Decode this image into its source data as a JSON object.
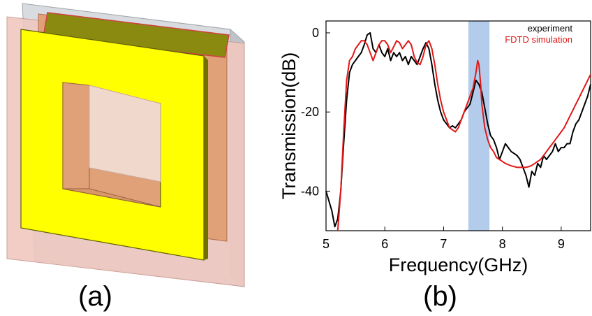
{
  "panels": {
    "a": {
      "label": "(a)"
    },
    "b": {
      "label": "(b)"
    }
  },
  "schematic": {
    "colors": {
      "gold_patch": "#ffff00",
      "copper_layer": "#e0a078",
      "substrate": "#f0c8c0",
      "glass": "#d8dce0",
      "top_strip": "#8a8a10",
      "top_strip_edge": "#d04040"
    }
  },
  "chart_data": {
    "type": "line",
    "xlabel": "Frequency(GHz)",
    "ylabel": "Transmission(dB)",
    "xlim": [
      5,
      9.5
    ],
    "ylim": [
      -50,
      3
    ],
    "xticks": [
      5,
      6,
      7,
      8,
      9
    ],
    "yticks": [
      0,
      -20,
      -40
    ],
    "grid": false,
    "legend_position": "top-right",
    "highlight_band": {
      "x0": 7.42,
      "x1": 7.78,
      "color": "#b4cceb"
    },
    "series": [
      {
        "name": "experiment",
        "color": "#000000",
        "x": [
          5.0,
          5.1,
          5.15,
          5.2,
          5.25,
          5.3,
          5.35,
          5.4,
          5.45,
          5.5,
          5.55,
          5.6,
          5.65,
          5.7,
          5.75,
          5.8,
          5.85,
          5.9,
          5.95,
          6.0,
          6.05,
          6.1,
          6.15,
          6.2,
          6.25,
          6.3,
          6.35,
          6.4,
          6.45,
          6.5,
          6.55,
          6.6,
          6.65,
          6.7,
          6.75,
          6.8,
          6.85,
          6.9,
          6.95,
          7.0,
          7.05,
          7.1,
          7.15,
          7.2,
          7.25,
          7.3,
          7.35,
          7.4,
          7.45,
          7.5,
          7.55,
          7.6,
          7.65,
          7.7,
          7.75,
          7.8,
          7.85,
          7.9,
          7.95,
          8.0,
          8.05,
          8.1,
          8.15,
          8.2,
          8.25,
          8.3,
          8.35,
          8.4,
          8.45,
          8.5,
          8.55,
          8.6,
          8.65,
          8.7,
          8.75,
          8.8,
          8.85,
          8.9,
          8.95,
          9.0,
          9.05,
          9.1,
          9.15,
          9.2,
          9.25,
          9.3,
          9.35,
          9.4,
          9.45,
          9.5
        ],
        "y": [
          -40,
          -45,
          -49,
          -47,
          -40,
          -28,
          -17,
          -10,
          -8,
          -7,
          -6,
          -5,
          -3,
          -0.5,
          0,
          -4,
          -5,
          -3,
          -5,
          -6,
          -4,
          -7,
          -5,
          -6,
          -5,
          -7,
          -6,
          -8,
          -6,
          -7,
          -8,
          -6,
          -4,
          -2.5,
          -4,
          -8,
          -13,
          -17,
          -20,
          -22,
          -23,
          -24,
          -23.5,
          -24,
          -23,
          -22,
          -20,
          -19,
          -18,
          -15,
          -12,
          -13,
          -15,
          -19,
          -23,
          -26,
          -27,
          -29,
          -32,
          -30,
          -28,
          -29,
          -30,
          -30.5,
          -31,
          -32,
          -34,
          -36,
          -39,
          -35,
          -36,
          -33,
          -34,
          -31,
          -32,
          -31,
          -30,
          -28,
          -30,
          -29,
          -29,
          -28,
          -28,
          -25,
          -23,
          -22,
          -20,
          -18,
          -16,
          -13
        ]
      },
      {
        "name": "FDTD simulation",
        "color": "#e01818",
        "x": [
          5.2,
          5.25,
          5.3,
          5.35,
          5.4,
          5.45,
          5.5,
          5.55,
          5.6,
          5.65,
          5.7,
          5.75,
          5.8,
          5.85,
          5.9,
          5.95,
          6.0,
          6.05,
          6.1,
          6.15,
          6.2,
          6.25,
          6.3,
          6.35,
          6.4,
          6.45,
          6.5,
          6.55,
          6.6,
          6.65,
          6.7,
          6.75,
          6.8,
          6.85,
          6.9,
          6.95,
          7.0,
          7.05,
          7.1,
          7.15,
          7.2,
          7.25,
          7.3,
          7.35,
          7.4,
          7.45,
          7.5,
          7.55,
          7.58,
          7.6,
          7.63,
          7.65,
          7.7,
          7.75,
          7.8,
          7.85,
          7.9,
          7.95,
          8.0,
          8.05,
          8.1,
          8.15,
          8.2,
          8.25,
          8.3,
          8.35,
          8.4,
          8.45,
          8.5,
          8.55,
          8.6,
          8.65,
          8.7,
          8.75,
          8.8,
          8.85,
          8.9,
          8.95,
          9.0,
          9.05,
          9.1,
          9.15,
          9.2,
          9.25,
          9.3,
          9.35,
          9.4,
          9.45,
          9.5
        ],
        "y": [
          -50,
          -40,
          -25,
          -12,
          -7,
          -6,
          -4,
          -3,
          -2,
          -2,
          -3,
          -5,
          -7,
          -5,
          -3,
          -2,
          -2,
          -3,
          -5,
          -3.5,
          -2,
          -2.5,
          -4,
          -3,
          -2,
          -3,
          -6,
          -7.5,
          -8,
          -6,
          -3,
          -2,
          -4,
          -8,
          -13,
          -17,
          -20,
          -22,
          -24,
          -24.5,
          -25,
          -24,
          -22,
          -20,
          -18,
          -16,
          -14,
          -10,
          -7,
          -8,
          -13,
          -18,
          -24,
          -27,
          -29,
          -30,
          -31.5,
          -32,
          -32.5,
          -33,
          -33.3,
          -33.6,
          -33.8,
          -34,
          -34,
          -34,
          -34,
          -33.8,
          -33.5,
          -33,
          -32.5,
          -32,
          -31,
          -30,
          -29,
          -28,
          -27,
          -26,
          -25,
          -24,
          -22.5,
          -21,
          -19.5,
          -18,
          -16.5,
          -15,
          -13.5,
          -12,
          -10.5
        ]
      }
    ]
  }
}
